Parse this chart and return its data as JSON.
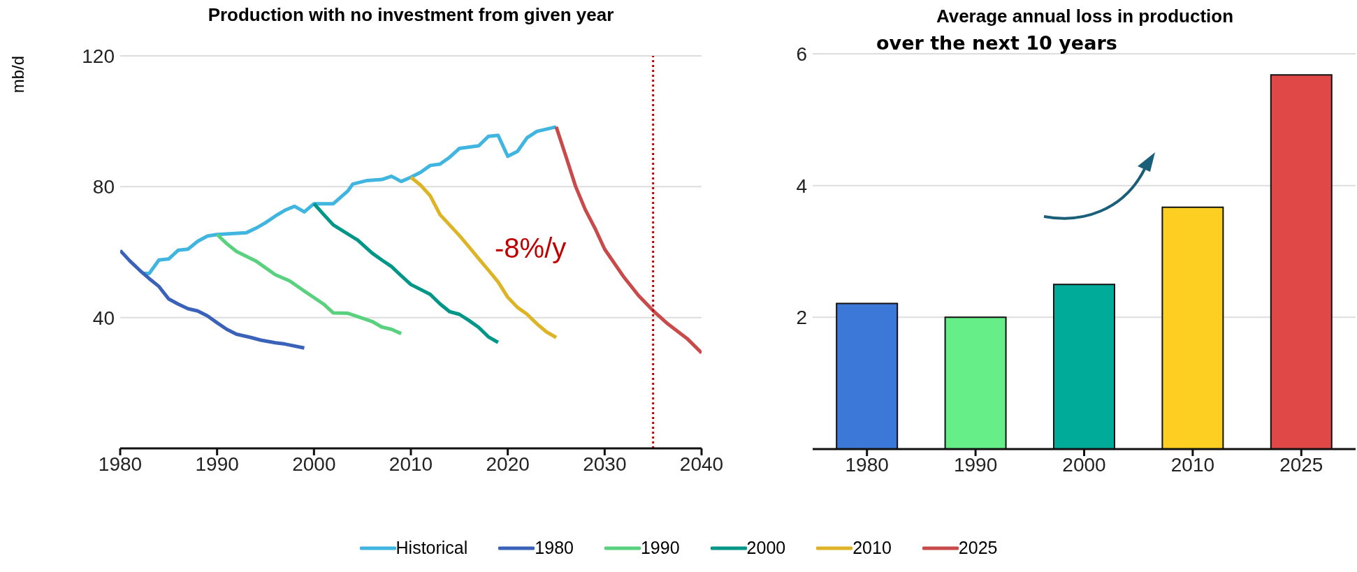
{
  "chart_data": [
    {
      "type": "line",
      "title": "Production with no investment from given year",
      "ylabel": "mb/d",
      "xlim": [
        1980,
        2040
      ],
      "xticks": [
        1980,
        1990,
        2000,
        2010,
        2020,
        2030,
        2040
      ],
      "ylim": [
        0,
        120
      ],
      "yticks": [
        40,
        80,
        120
      ],
      "grid": "y",
      "legend": "bottom",
      "marker": "none",
      "line_style": "solid",
      "series": [
        {
          "name": "Historical",
          "color": "#3fb5e0",
          "x": [
            1982.3,
            1983,
            1984,
            1985,
            1986,
            1987,
            1988,
            1989,
            1990,
            1993,
            1994,
            1995,
            1996,
            1997,
            1998,
            1999,
            2000,
            2002,
            2003.5,
            2004,
            2005.5,
            2007,
            2008,
            2009,
            2010,
            2011,
            2012,
            2013,
            2014,
            2015,
            2017,
            2018,
            2019,
            2020,
            2021,
            2022,
            2023,
            2025
          ],
          "values": [
            53.5,
            53.5,
            57.6,
            57.9,
            60.6,
            60.9,
            63.3,
            64.9,
            65.4,
            65.9,
            67.3,
            69,
            71,
            72.8,
            74,
            72.3,
            74.8,
            74.8,
            78.7,
            80.8,
            81.9,
            82.2,
            83.2,
            81.6,
            82.9,
            84.4,
            86.5,
            86.9,
            89,
            91.7,
            92.5,
            95.4,
            95.7,
            89.3,
            90.8,
            95,
            96.9,
            98.3
          ]
        },
        {
          "name": "1980",
          "color": "#3a62b8",
          "x": [
            1980,
            1981,
            1982,
            1983,
            1984,
            1985,
            1986,
            1987,
            1988,
            1989,
            1990,
            1991,
            1992,
            1993.5,
            1994.5,
            1996,
            1997,
            1999
          ],
          "values": [
            60.5,
            57.3,
            54.5,
            51.9,
            49.5,
            45.7,
            44.1,
            42.7,
            42,
            40.5,
            38.4,
            36.4,
            34.9,
            33.9,
            33.1,
            32.3,
            31.9,
            30.7
          ]
        },
        {
          "name": "1990",
          "color": "#5ad17e",
          "x": [
            1990,
            1991,
            1992,
            1994,
            1996,
            1997.5,
            1999,
            2001,
            2002,
            2003.5,
            2005,
            2006,
            2007,
            2008,
            2009
          ],
          "values": [
            65.4,
            62.6,
            60.2,
            57.3,
            53.1,
            51.2,
            48.1,
            44.1,
            41.4,
            41.3,
            39.8,
            38.8,
            37.1,
            36.4,
            35.1
          ]
        },
        {
          "name": "2000",
          "color": "#009688",
          "x": [
            2000,
            2001,
            2002,
            2004.5,
            2006,
            2007,
            2008,
            2009,
            2010,
            2012,
            2013,
            2014,
            2015,
            2016,
            2017,
            2018,
            2019
          ],
          "values": [
            74.8,
            71.5,
            68.3,
            63.7,
            59.7,
            57.6,
            55.6,
            52.8,
            50.1,
            47.1,
            44.2,
            41.8,
            41,
            39.1,
            37,
            34.1,
            32.4
          ]
        },
        {
          "name": "2010",
          "color": "#dcb426",
          "x": [
            2010,
            2011,
            2012,
            2013,
            2014,
            2015,
            2016,
            2017,
            2018,
            2019,
            2020,
            2021,
            2022,
            2023,
            2024,
            2025
          ],
          "values": [
            82.9,
            80.5,
            77.2,
            71.5,
            68.3,
            65.1,
            61.6,
            58,
            54.5,
            50.9,
            46.2,
            43.1,
            41,
            38.1,
            35.6,
            33.9
          ]
        },
        {
          "name": "2025",
          "color": "#c84a4a",
          "x": [
            2025,
            2026,
            2027,
            2028,
            2029,
            2030,
            2032,
            2033.5,
            2035,
            2036.5,
            2038.5,
            2040
          ],
          "values": [
            98.3,
            89.3,
            80.1,
            73,
            67.3,
            60.9,
            52.3,
            46.7,
            42.1,
            38.1,
            33.6,
            29.2
          ]
        }
      ],
      "ref_lines": [
        {
          "axis": "x",
          "value": 2035,
          "color": "#c00000",
          "line_style": "dotted"
        }
      ],
      "annotations": [
        "-8%/y"
      ]
    },
    {
      "type": "bar",
      "title": "Average annual loss in production",
      "subtitle": "over the next 10 years",
      "categories": [
        "1980",
        "1990",
        "2000",
        "2010",
        "2025"
      ],
      "values": [
        2.21,
        2.0,
        2.5,
        3.67,
        5.68
      ],
      "colors": [
        "#3c78d8",
        "#66ee88",
        "#00ab9a",
        "#fccf22",
        "#e04848"
      ],
      "ylim": [
        0,
        6
      ],
      "yticks": [
        2,
        4,
        6
      ],
      "grid": "y"
    }
  ]
}
